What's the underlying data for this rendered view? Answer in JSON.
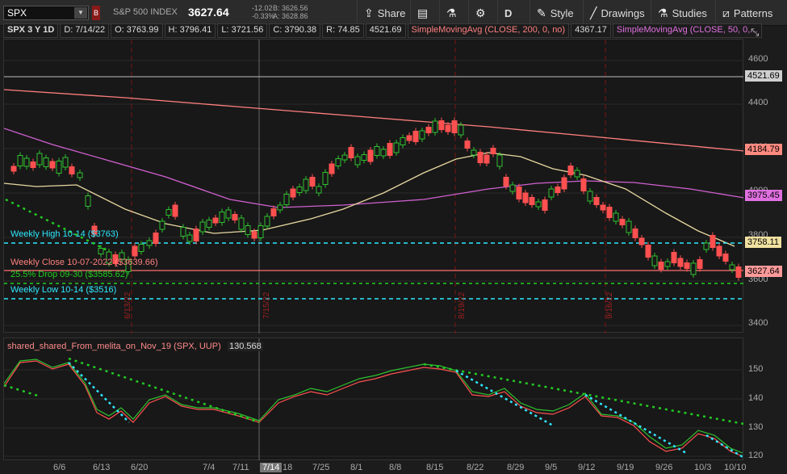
{
  "header": {
    "symbol": "SPX",
    "flag": "B",
    "description": "S&P 500 INDEX",
    "last": "3627.64",
    "net_change": "-12.02",
    "pct_change": "-0.33%",
    "bid": "B: 3626.56",
    "ask": "A: 3628.86"
  },
  "toolbar": {
    "share": "Share",
    "aggregation": "D",
    "style": "Style",
    "drawings": "Drawings",
    "studies": "Studies",
    "patterns": "Patterns"
  },
  "infobar": {
    "period": "SPX 3 Y 1D",
    "date": "D: 7/14/22",
    "open": "O: 3763.99",
    "high": "H: 3796.41",
    "low": "L: 3721.56",
    "close": "C: 3790.38",
    "range": "R: 74.85",
    "value": "4521.69",
    "sma200_label": "SimpleMovingAvg (CLOSE, 200, 0, no)",
    "sma200_value": "4367.17",
    "sma50_label": "SimpleMovingAvg (CLOSE, 50, 0,..."
  },
  "price_axis": {
    "ticks": [
      "4600",
      "4400",
      "4200",
      "4000",
      "3800",
      "3600",
      "3400"
    ],
    "tags": [
      {
        "text": "4521.69",
        "bg": "#cfcfcf"
      },
      {
        "text": "4184.79",
        "bg": "#ff8a80"
      },
      {
        "text": "3975.45",
        "bg": "#e070e0"
      },
      {
        "text": "3758.11",
        "bg": "#f0e0a0"
      },
      {
        "text": "3627.64",
        "bg": "#ff9a9a"
      }
    ]
  },
  "annotations": {
    "weekly_high": "Weekly High  10-14 ($3763)",
    "weekly_close": "Weekly Close  10-07-2022 ($3639.66)",
    "drop": "25.5% Drop 09-30 ($3585.62)",
    "weekly_low": "Weekly Low 10-14 ($3516)",
    "vlines": [
      "6/13/22",
      "7/15/22",
      "8/19/22",
      "9/16/22"
    ]
  },
  "study": {
    "name": "shared_shared_From_melita_on_Nov_19 (SPX, UUP)",
    "value": "130.568",
    "ticks": [
      "150",
      "140",
      "130",
      "120"
    ]
  },
  "x_axis": {
    "labels": [
      "6/6",
      "6/13",
      "6/20",
      "7/4",
      "7/11",
      "7/14",
      "18",
      "7/25",
      "8/1",
      "8/8",
      "8/15",
      "8/22",
      "8/29",
      "9/5",
      "9/12",
      "9/19",
      "9/26",
      "10/3",
      "10/10"
    ]
  },
  "colors": {
    "up": "#2fc02f",
    "down": "#ff5050",
    "sma200": "#ff7f7f",
    "sma50": "#d060d0",
    "sma_short": "#e8d8a0",
    "cyan": "#2fe8ff",
    "green_dots": "#22cc22"
  }
}
